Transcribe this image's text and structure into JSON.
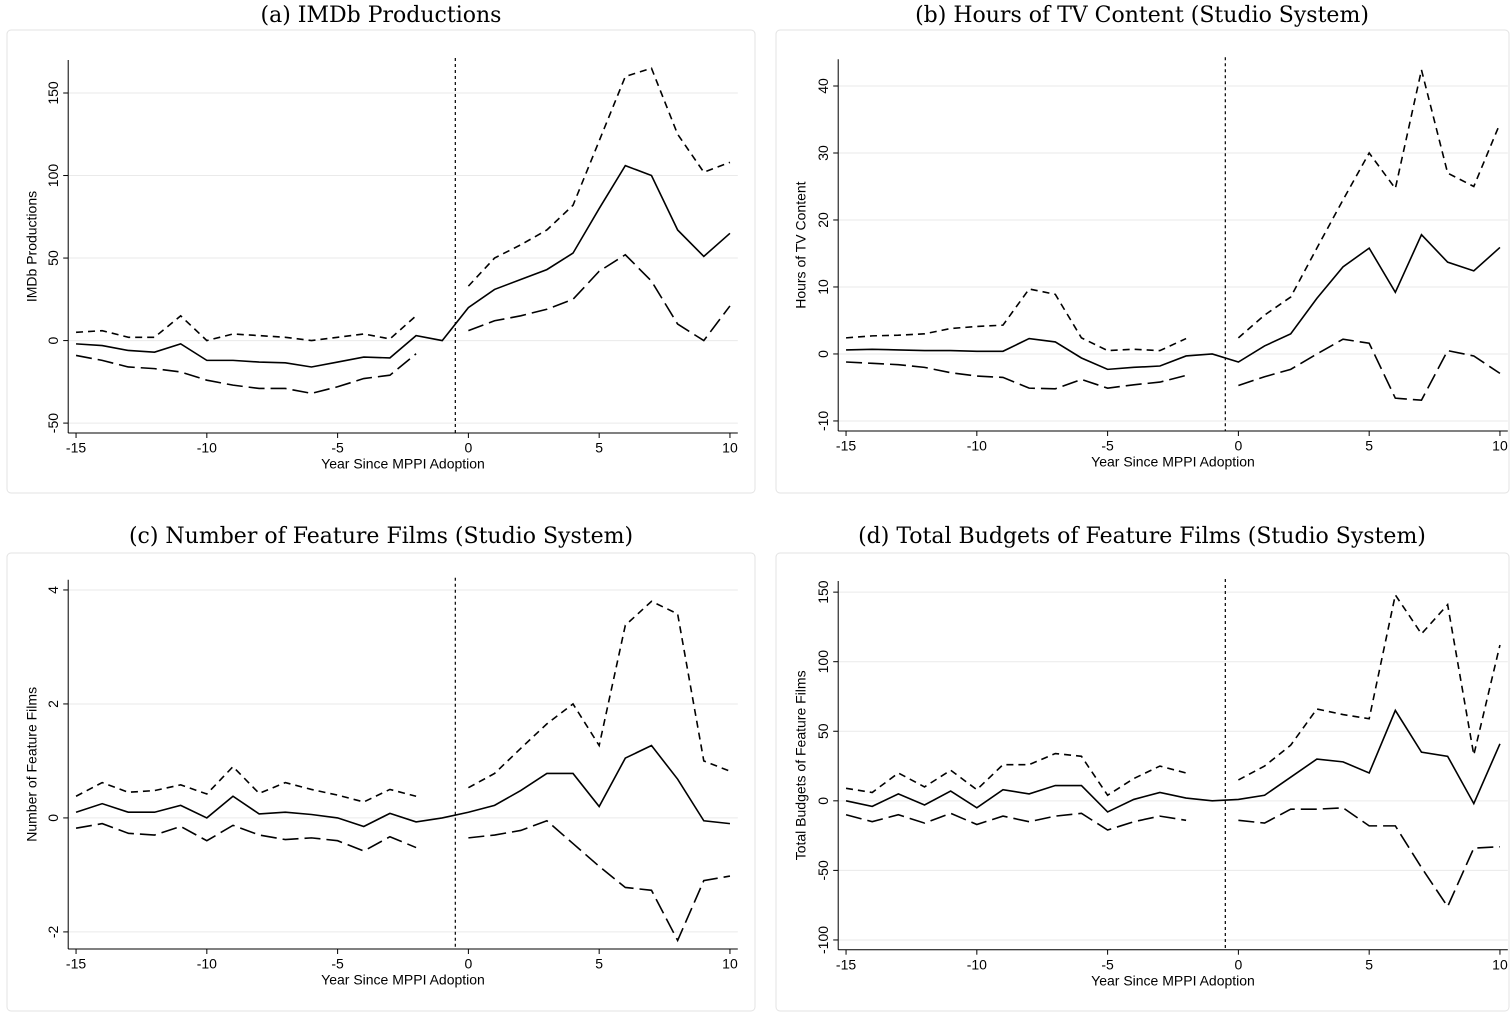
{
  "chart_data": [
    {
      "type": "line",
      "title": "(a) IMDb Productions",
      "xlabel": "Year Since MPPI Adoption",
      "ylabel": "IMDb Productions",
      "x": [
        -15,
        -14,
        -13,
        -12,
        -11,
        -10,
        -9,
        -8,
        -7,
        -6,
        -5,
        -4,
        -3,
        -2,
        -1,
        0,
        1,
        2,
        3,
        4,
        5,
        6,
        7,
        8,
        9,
        10
      ],
      "series": [
        {
          "dash": "solid",
          "color": "#000000",
          "values": [
            -2,
            -3,
            -6,
            -7,
            -2,
            -12,
            -12,
            -13,
            -13.5,
            -16,
            -13,
            -10,
            -10.5,
            3,
            0,
            20,
            31,
            37,
            43,
            53,
            80,
            106,
            100,
            67,
            51,
            65
          ]
        },
        {
          "dash": "short",
          "color": "#000000",
          "values": [
            5,
            6,
            2,
            2,
            15,
            0,
            4,
            3,
            2,
            0,
            2,
            4,
            1,
            15,
            null,
            33,
            50,
            58,
            67,
            82,
            121,
            160,
            165,
            125,
            102,
            108
          ]
        },
        {
          "dash": "long",
          "color": "#000000",
          "values": [
            -9,
            -12,
            -16,
            -17,
            -19,
            -24,
            -27,
            -29,
            -29,
            -32,
            -28,
            -23,
            -21,
            -8,
            null,
            6,
            12,
            15,
            19,
            25,
            42,
            52,
            36,
            10,
            0,
            21
          ]
        }
      ],
      "xlim": [
        -15.3,
        10.3
      ],
      "xticks": [
        -15,
        -10,
        -5,
        0,
        5,
        10
      ],
      "ylim": [
        -56,
        170
      ],
      "yticks": [
        -50,
        0,
        50,
        100,
        150
      ],
      "grid": true,
      "vline": -0.5
    },
    {
      "type": "line",
      "title": "(b) Hours of TV Content (Studio System)",
      "xlabel": "Year Since MPPI Adoption",
      "ylabel": "Hours of TV Content",
      "x": [
        -15,
        -14,
        -13,
        -12,
        -11,
        -10,
        -9,
        -8,
        -7,
        -6,
        -5,
        -4,
        -3,
        -2,
        -1,
        0,
        1,
        2,
        3,
        4,
        5,
        6,
        7,
        8,
        9,
        10
      ],
      "series": [
        {
          "dash": "solid",
          "color": "#000000",
          "values": [
            0.6,
            0.7,
            0.6,
            0.5,
            0.5,
            0.4,
            0.4,
            2.3,
            1.8,
            -0.6,
            -2.3,
            -2,
            -1.8,
            -0.3,
            0,
            -1.2,
            1.2,
            3,
            8.3,
            13,
            15.8,
            9.2,
            17.8,
            13.7,
            12.4,
            15.9
          ]
        },
        {
          "dash": "short",
          "color": "#000000",
          "values": [
            2.4,
            2.7,
            2.8,
            3,
            3.8,
            4.1,
            4.3,
            9.7,
            8.9,
            2.4,
            0.5,
            0.7,
            0.5,
            2.3,
            null,
            2.4,
            5.8,
            8.5,
            15.8,
            23,
            30,
            24.7,
            42.4,
            27,
            25,
            34.4
          ]
        },
        {
          "dash": "long",
          "color": "#000000",
          "values": [
            -1.2,
            -1.4,
            -1.6,
            -2,
            -2.8,
            -3.3,
            -3.5,
            -5.1,
            -5.2,
            -3.8,
            -5.1,
            -4.6,
            -4.2,
            -3.2,
            null,
            -4.7,
            -3.4,
            -2.3,
            0,
            2.2,
            1.6,
            -6.6,
            -6.9,
            0.5,
            -0.3,
            -2.9
          ]
        }
      ],
      "xlim": [
        -15.3,
        10.3
      ],
      "xticks": [
        -15,
        -10,
        -5,
        0,
        5,
        10
      ],
      "ylim": [
        -11.5,
        44
      ],
      "yticks": [
        -10,
        0,
        10,
        20,
        30,
        40
      ],
      "grid": true,
      "vline": -0.5
    },
    {
      "type": "line",
      "title": "(c) Number of Feature Films (Studio System)",
      "xlabel": "Year Since MPPI Adoption",
      "ylabel": "Number of Feature Films",
      "x": [
        -15,
        -14,
        -13,
        -12,
        -11,
        -10,
        -9,
        -8,
        -7,
        -6,
        -5,
        -4,
        -3,
        -2,
        -1,
        0,
        1,
        2,
        3,
        4,
        5,
        6,
        7,
        8,
        9,
        10
      ],
      "series": [
        {
          "dash": "solid",
          "color": "#000000",
          "values": [
            0.1,
            0.25,
            0.1,
            0.1,
            0.22,
            0,
            0.38,
            0.07,
            0.1,
            0.06,
            0,
            -0.15,
            0.08,
            -0.07,
            0,
            0.1,
            0.22,
            0.48,
            0.78,
            0.78,
            0.2,
            1.05,
            1.27,
            0.68,
            -0.05,
            -0.1
          ]
        },
        {
          "dash": "short",
          "color": "#000000",
          "values": [
            0.38,
            0.62,
            0.45,
            0.48,
            0.58,
            0.42,
            0.9,
            0.43,
            0.62,
            0.5,
            0.4,
            0.28,
            0.5,
            0.38,
            null,
            0.53,
            0.78,
            1.22,
            1.65,
            2,
            1.27,
            3.38,
            3.8,
            3.58,
            1,
            0.82
          ]
        },
        {
          "dash": "long",
          "color": "#000000",
          "values": [
            -0.18,
            -0.1,
            -0.27,
            -0.3,
            -0.15,
            -0.4,
            -0.13,
            -0.3,
            -0.38,
            -0.35,
            -0.4,
            -0.58,
            -0.33,
            -0.52,
            null,
            -0.35,
            -0.3,
            -0.22,
            -0.05,
            -0.45,
            -0.85,
            -1.22,
            -1.27,
            -2.15,
            -1.1,
            -1.02
          ]
        }
      ],
      "xlim": [
        -15.3,
        10.3
      ],
      "xticks": [
        -15,
        -10,
        -5,
        0,
        5,
        10
      ],
      "ylim": [
        -2.3,
        4.18
      ],
      "yticks": [
        -2,
        0,
        2,
        4
      ],
      "grid": true,
      "vline": -0.5
    },
    {
      "type": "line",
      "title": "(d) Total Budgets of Feature Films (Studio System)",
      "xlabel": "Year Since MPPI Adoption",
      "ylabel": "Total Budgets of Feature Films",
      "x": [
        -15,
        -14,
        -13,
        -12,
        -11,
        -10,
        -9,
        -8,
        -7,
        -6,
        -5,
        -4,
        -3,
        -2,
        -1,
        0,
        1,
        2,
        3,
        4,
        5,
        6,
        7,
        8,
        9,
        10
      ],
      "series": [
        {
          "dash": "solid",
          "color": "#000000",
          "values": [
            0,
            -4,
            5,
            -3,
            7,
            -5,
            8,
            5,
            11,
            11,
            -8,
            1,
            6,
            2,
            0,
            1,
            4,
            17,
            30,
            28,
            20,
            65,
            35,
            32,
            -2,
            41
          ]
        },
        {
          "dash": "short",
          "color": "#000000",
          "values": [
            9,
            6,
            20,
            10,
            22,
            8,
            26,
            26,
            34,
            32,
            4,
            16,
            25,
            20,
            null,
            15,
            25,
            40,
            66,
            62,
            59,
            148,
            120,
            141,
            33,
            112
          ]
        },
        {
          "dash": "long",
          "color": "#000000",
          "values": [
            -10,
            -15,
            -10,
            -16,
            -9,
            -17,
            -11,
            -15,
            -11,
            -9,
            -21,
            -15,
            -11,
            -14,
            null,
            -14,
            -16,
            -6,
            -6,
            -5,
            -18,
            -18,
            -48,
            -76,
            -34,
            -33
          ]
        }
      ],
      "xlim": [
        -15.3,
        10.3
      ],
      "xticks": [
        -15,
        -10,
        -5,
        0,
        5,
        10
      ],
      "ylim": [
        -107,
        158
      ],
      "yticks": [
        -100,
        -50,
        0,
        50,
        100,
        150
      ],
      "grid": true,
      "vline": -0.5
    }
  ]
}
